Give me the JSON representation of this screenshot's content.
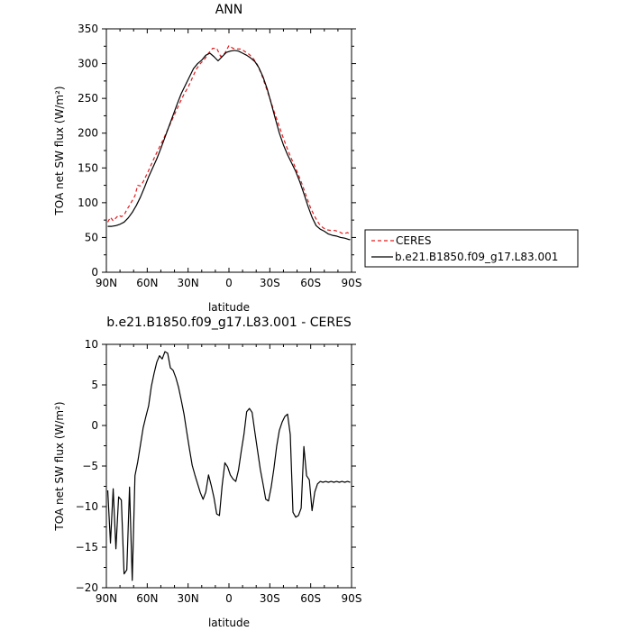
{
  "chart_data": [
    {
      "type": "line",
      "title": "ANN",
      "xlabel": "latitude",
      "ylabel": "TOA net SW flux (W/m²)",
      "xlim": [
        -90,
        90
      ],
      "ylim": [
        0,
        350
      ],
      "xticks": [
        -90,
        -60,
        -30,
        0,
        30,
        60,
        90
      ],
      "xtick_labels": [
        "90N",
        "60N",
        "30N",
        "0",
        "30S",
        "60S",
        "90S"
      ],
      "yticks": [
        0,
        50,
        100,
        150,
        200,
        250,
        300,
        350
      ],
      "ytick_labels": [
        "0",
        "50",
        "100",
        "150",
        "200",
        "250",
        "300",
        "350"
      ],
      "legend_position": "right-outside",
      "series": [
        {
          "name": "CERES",
          "color": "#e41a1c",
          "dash": "dashed",
          "x": [
            -89,
            -87,
            -85,
            -83,
            -81,
            -79,
            -77,
            -75,
            -73,
            -71,
            -69,
            -67,
            -65,
            -63,
            -60,
            -57,
            -54,
            -51,
            -48,
            -45,
            -42,
            -39,
            -36,
            -33,
            -30,
            -27,
            -24,
            -21,
            -18,
            -15,
            -12,
            -9,
            -6,
            -3,
            0,
            3,
            6,
            9,
            12,
            15,
            18,
            21,
            24,
            27,
            30,
            33,
            36,
            39,
            42,
            45,
            48,
            51,
            54,
            57,
            60,
            63,
            66,
            69,
            72,
            75,
            78,
            81,
            84,
            87,
            89
          ],
          "y": [
            72,
            79,
            74,
            78,
            82,
            80,
            82,
            90,
            96,
            103,
            110,
            125,
            124,
            130,
            142,
            155,
            168,
            180,
            192,
            205,
            218,
            231,
            244,
            256,
            266,
            279,
            292,
            300,
            306,
            315,
            322,
            322,
            310,
            315,
            326,
            322,
            321,
            321,
            317,
            313,
            307,
            298,
            284,
            267,
            250,
            232,
            215,
            198,
            182,
            167,
            154,
            140,
            125,
            108,
            92,
            80,
            70,
            64,
            61,
            60,
            60,
            58,
            55,
            57,
            55
          ]
        },
        {
          "name": "b.e21.B1850.f09_g17.L83.001",
          "color": "#000000",
          "dash": "solid",
          "x": [
            -89,
            -86,
            -83,
            -80,
            -77,
            -74,
            -71,
            -68,
            -65,
            -62,
            -59,
            -56,
            -53,
            -50,
            -47,
            -44,
            -41,
            -38,
            -35,
            -32,
            -29,
            -26,
            -23,
            -20,
            -17,
            -14,
            -11,
            -8,
            -5,
            -2,
            1,
            4,
            7,
            10,
            13,
            16,
            19,
            22,
            25,
            28,
            31,
            34,
            37,
            40,
            43,
            46,
            49,
            52,
            55,
            58,
            61,
            64,
            67,
            70,
            73,
            76,
            79,
            82,
            85,
            88,
            89
          ],
          "y": [
            66,
            66,
            67,
            69,
            72,
            78,
            86,
            96,
            108,
            122,
            137,
            150,
            163,
            178,
            194,
            210,
            226,
            242,
            257,
            269,
            281,
            293,
            300,
            305,
            312,
            315,
            310,
            304,
            310,
            316,
            318,
            319,
            318,
            315,
            312,
            308,
            303,
            294,
            281,
            264,
            243,
            221,
            200,
            183,
            169,
            157,
            145,
            130,
            113,
            95,
            79,
            67,
            62,
            59,
            55,
            53,
            52,
            50,
            49,
            47,
            47
          ]
        }
      ]
    },
    {
      "type": "line",
      "title": "b.e21.B1850.f09_g17.L83.001 - CERES",
      "xlabel": "latitude",
      "ylabel": "TOA net SW flux (W/m²)",
      "xlim": [
        -90,
        90
      ],
      "ylim": [
        -20,
        10
      ],
      "xticks": [
        -90,
        -60,
        -30,
        0,
        30,
        60,
        90
      ],
      "xtick_labels": [
        "90N",
        "60N",
        "30N",
        "0",
        "30S",
        "60S",
        "90S"
      ],
      "yticks": [
        -20,
        -15,
        -10,
        -5,
        0,
        5,
        10
      ],
      "ytick_labels": [
        "−20",
        "−15",
        "−10",
        "−5",
        "0",
        "5",
        "10"
      ],
      "series": [
        {
          "color": "#000000",
          "dash": "solid",
          "x": [
            -89,
            -87,
            -85,
            -83,
            -81,
            -79,
            -77,
            -75,
            -73,
            -71,
            -69,
            -67,
            -65,
            -63,
            -61,
            -59,
            -57,
            -55,
            -53,
            -51,
            -49,
            -47,
            -45,
            -43,
            -41,
            -39,
            -37,
            -35,
            -33,
            -31,
            -29,
            -27,
            -25,
            -23,
            -21,
            -19,
            -17,
            -15,
            -13,
            -11,
            -9,
            -7,
            -5,
            -3,
            -1,
            1,
            3,
            5,
            7,
            9,
            11,
            13,
            15,
            17,
            19,
            21,
            23,
            25,
            27,
            29,
            31,
            33,
            35,
            37,
            39,
            41,
            43,
            45,
            47,
            49,
            51,
            53,
            55,
            57,
            59,
            61,
            63,
            65,
            67,
            69,
            71,
            73,
            75,
            77,
            79,
            81,
            83,
            85,
            87,
            89
          ],
          "y": [
            -8,
            -14.5,
            -7.8,
            -15.2,
            -8.8,
            -9.2,
            -18.3,
            -17.8,
            -7.6,
            -19.1,
            -6.2,
            -4.5,
            -2.4,
            -0.3,
            1.1,
            2.4,
            4.8,
            6.4,
            7.8,
            8.6,
            8.2,
            9.1,
            8.9,
            7.1,
            6.8,
            5.9,
            4.7,
            3.1,
            1.4,
            -0.8,
            -2.9,
            -4.9,
            -6.1,
            -7.2,
            -8.3,
            -9.1,
            -8.2,
            -6.1,
            -7.4,
            -8.9,
            -10.9,
            -11.1,
            -7.4,
            -4.6,
            -5.1,
            -6.1,
            -6.6,
            -6.9,
            -5.5,
            -3.2,
            -1.1,
            1.7,
            2.1,
            1.6,
            -0.8,
            -3.1,
            -5.4,
            -7.2,
            -9.1,
            -9.3,
            -7.6,
            -5.3,
            -2.6,
            -0.6,
            0.4,
            1.1,
            1.4,
            -1.1,
            -10.7,
            -11.3,
            -11.1,
            -10.2,
            -2.6,
            -6.2,
            -6.7,
            -10.5,
            -8.2,
            -7.2,
            -6.9,
            -7.0,
            -6.9,
            -7.0,
            -6.9,
            -7.0,
            -6.9,
            -7.0,
            -6.9,
            -7.0,
            -6.9,
            -7.0
          ]
        }
      ]
    }
  ]
}
